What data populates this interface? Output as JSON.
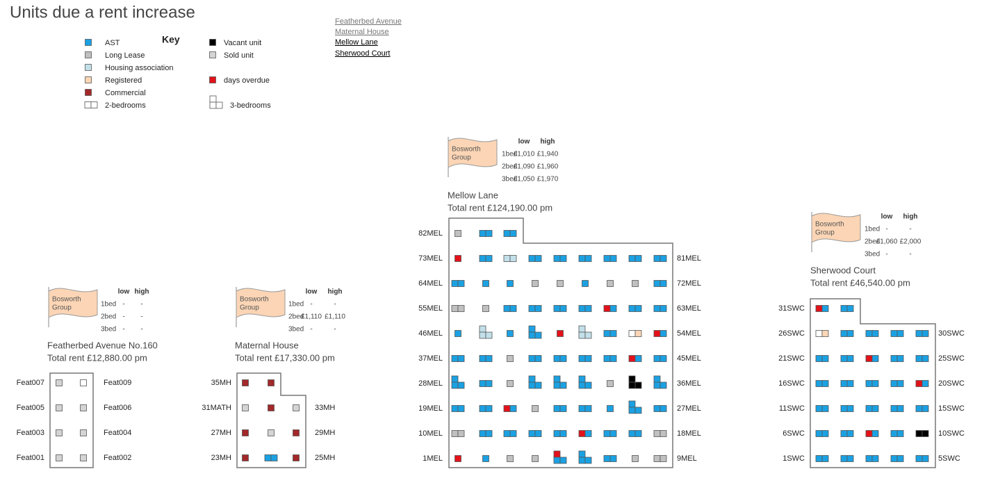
{
  "header": {
    "title": "Units due a rent increase"
  },
  "key": {
    "title": "Key",
    "items": [
      "AST",
      "Long Lease",
      "Housing association",
      "Registered",
      "Commercial",
      "2-bedrooms",
      "Vacant unit",
      "Sold unit",
      "days overdue",
      "3-bedrooms"
    ]
  },
  "links": [
    "Featherbed Avenue",
    "Maternal House",
    "Mellow Lane",
    "Sherwood Court"
  ],
  "buildings": [
    {
      "flag": [
        "Bosworth",
        "Group"
      ],
      "table": {
        "columns": [
          "low",
          "high"
        ],
        "rows": [
          [
            "1bed",
            "-",
            "-"
          ],
          [
            "2bed",
            "-",
            "-"
          ],
          [
            "3bed",
            "-",
            "-"
          ]
        ]
      },
      "name": "Featherbed Avenue No.160",
      "total": "Total rent £12,880.00 pm",
      "rows": [
        {
          "left": "Feat007",
          "right": "Feat009"
        },
        {
          "left": "Feat005",
          "right": "Feat006"
        },
        {
          "left": "Feat003",
          "right": "Feat004"
        },
        {
          "left": "Feat001",
          "right": "Feat002"
        }
      ]
    },
    {
      "flag": [
        "Bosworth",
        "Group"
      ],
      "table": {
        "columns": [
          "low",
          "high"
        ],
        "rows": [
          [
            "1bed",
            "-",
            "-"
          ],
          [
            "2bed",
            "£1,110",
            "£1,110"
          ],
          [
            "3bed",
            "-",
            "-"
          ]
        ]
      },
      "name": "Maternal House",
      "total": "Total rent £17,330.00 pm",
      "rows": [
        {
          "left": "35MH"
        },
        {
          "left": "31MATH",
          "right": "33MH"
        },
        {
          "left": "27MH",
          "right": "29MH"
        },
        {
          "left": "23MH",
          "right": "25MH"
        }
      ]
    },
    {
      "flag": [
        "Bosworth",
        "Group"
      ],
      "table": {
        "columns": [
          "low",
          "high"
        ],
        "rows": [
          [
            "1bed",
            "£1,010",
            "£1,940"
          ],
          [
            "2bed",
            "£1,090",
            "£1,960"
          ],
          [
            "3bed",
            "£1,050",
            "£1,970"
          ]
        ]
      },
      "name": "Mellow Lane",
      "total": "Total rent £124,190.00 pm",
      "rows": [
        {
          "left": "82MEL"
        },
        {
          "left": "73MEL",
          "right": "81MEL"
        },
        {
          "left": "64MEL",
          "right": "72MEL"
        },
        {
          "left": "55MEL",
          "right": "63MEL"
        },
        {
          "left": "46MEL",
          "right": "54MEL"
        },
        {
          "left": "37MEL",
          "right": "45MEL"
        },
        {
          "left": "28MEL",
          "right": "36MEL"
        },
        {
          "left": "19MEL",
          "right": "27MEL"
        },
        {
          "left": "10MEL",
          "right": "18MEL"
        },
        {
          "left": "1MEL",
          "right": "9MEL"
        }
      ]
    },
    {
      "flag": [
        "Bosworth",
        "Group"
      ],
      "table": {
        "columns": [
          "low",
          "high"
        ],
        "rows": [
          [
            "1bed",
            "-",
            "-"
          ],
          [
            "2bed",
            "£1,060",
            "£2,000"
          ],
          [
            "3bed",
            "-",
            "-"
          ]
        ]
      },
      "name": "Sherwood Court",
      "total": "Total rent £46,540.00 pm",
      "rows": [
        {
          "left": "31SWC"
        },
        {
          "left": "26SWC",
          "right": "30SWC"
        },
        {
          "left": "21SWC",
          "right": "25SWC"
        },
        {
          "left": "16SWC",
          "right": "20SWC"
        },
        {
          "left": "11SWC",
          "right": "15SWC"
        },
        {
          "left": "6SWC",
          "right": "10SWC"
        },
        {
          "left": "1SWC",
          "right": "5SWC"
        }
      ]
    }
  ]
}
